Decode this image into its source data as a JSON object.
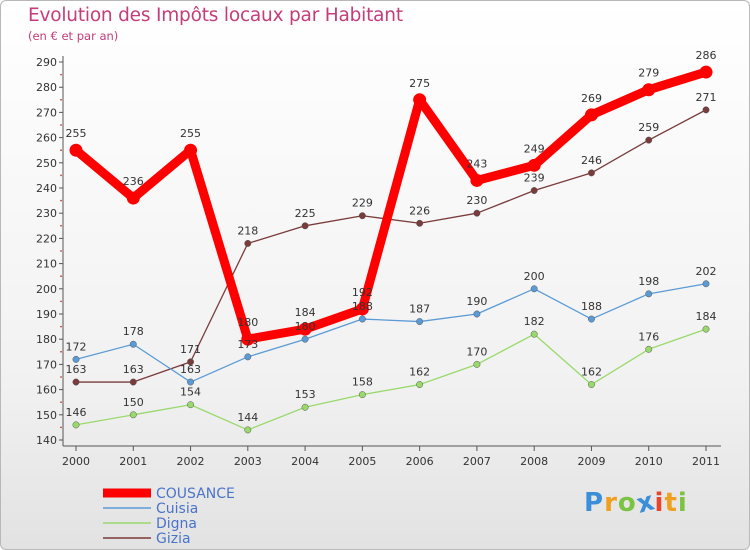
{
  "header": {
    "title": "Evolution des Impôts locaux par Habitant",
    "subtitle": "(en € et par an)"
  },
  "chart_data": {
    "type": "line",
    "title": "Evolution des Impôts locaux par Habitant",
    "subtitle": "(en € et par an)",
    "xlabel": "",
    "ylabel": "",
    "categories": [
      "2000",
      "2001",
      "2002",
      "2003",
      "2004",
      "2005",
      "2006",
      "2007",
      "2008",
      "2009",
      "2010",
      "2011"
    ],
    "ylim": [
      140,
      290
    ],
    "yticks": [
      140,
      150,
      160,
      170,
      180,
      190,
      200,
      210,
      220,
      230,
      240,
      250,
      260,
      270,
      280,
      290
    ],
    "grid": false,
    "legend_position": "bottom-left",
    "series": [
      {
        "name": "COUSANCE",
        "color": "#ff0000",
        "values": [
          255,
          236,
          255,
          180,
          184,
          192,
          275,
          243,
          249,
          269,
          279,
          286
        ]
      },
      {
        "name": "Cuisia",
        "color": "#5b9bd5",
        "values": [
          172,
          178,
          163,
          173,
          180,
          188,
          187,
          190,
          200,
          188,
          198,
          202
        ]
      },
      {
        "name": "Digna",
        "color": "#99d96b",
        "values": [
          146,
          150,
          154,
          144,
          153,
          158,
          162,
          170,
          182,
          162,
          176,
          184
        ]
      },
      {
        "name": "Gizia",
        "color": "#7a3b3b",
        "values": [
          163,
          163,
          171,
          218,
          225,
          229,
          226,
          230,
          239,
          246,
          259,
          271
        ]
      }
    ]
  },
  "legend": {
    "items": [
      "COUSANCE",
      "Cuisia",
      "Digna",
      "Gizia"
    ]
  },
  "logo": {
    "letters": [
      "P",
      "r",
      "o",
      "x",
      "i",
      "t",
      "i"
    ],
    "colors": [
      "#3b8fd9",
      "#f0a020",
      "#7cc243",
      "#3b8fd9",
      "#e8452c",
      "#f0a020",
      "#7cc243"
    ]
  }
}
